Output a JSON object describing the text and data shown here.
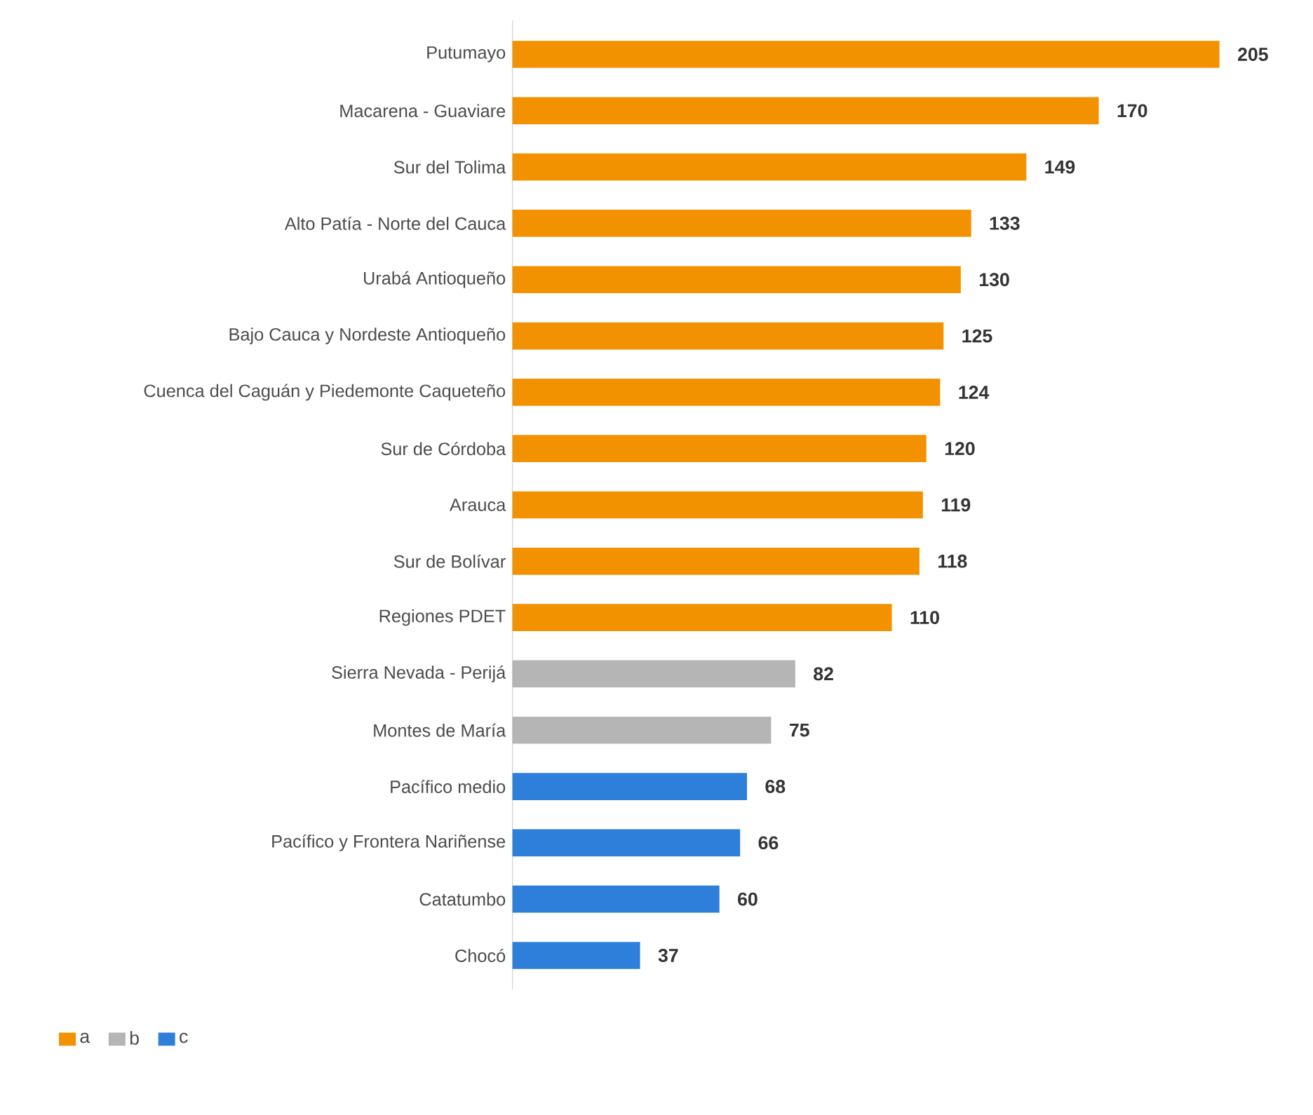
{
  "chart_data": {
    "type": "bar",
    "orientation": "horizontal",
    "categories": [
      "Putumayo",
      "Macarena - Guaviare",
      "Sur del Tolima",
      "Alto Patía - Norte del Cauca",
      "Urabá Antioqueño",
      "Bajo Cauca y Nordeste Antioqueño",
      "Cuenca del Caguán y Piedemonte Caqueteño",
      "Sur de Córdoba",
      "Arauca",
      "Sur de Bolívar",
      "Regiones PDET",
      "Sierra Nevada - Perijá",
      "Montes de María",
      "Pacífico medio",
      "Pacífico y Frontera Nariñense",
      "Catatumbo",
      "Chocó"
    ],
    "series": [
      {
        "name": "a",
        "color": "#f39200",
        "values": [
          205,
          170,
          149,
          133,
          130,
          125,
          124,
          120,
          119,
          118,
          110,
          null,
          null,
          null,
          null,
          null,
          null
        ]
      },
      {
        "name": "b",
        "color": "#b5b5b5",
        "values": [
          null,
          null,
          null,
          null,
          null,
          null,
          null,
          null,
          null,
          null,
          null,
          82,
          75,
          null,
          null,
          null,
          null
        ]
      },
      {
        "name": "c",
        "color": "#2e7fd9",
        "values": [
          null,
          null,
          null,
          null,
          null,
          null,
          null,
          null,
          null,
          null,
          null,
          null,
          null,
          68,
          66,
          60,
          37
        ]
      }
    ],
    "data_labels": true,
    "legend": "bottom left"
  }
}
